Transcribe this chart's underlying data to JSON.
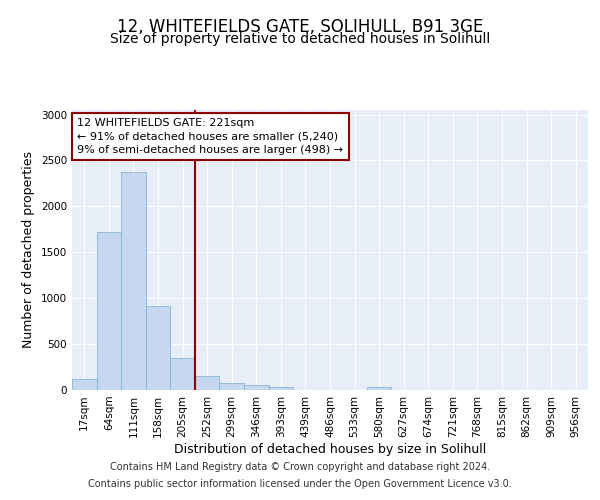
{
  "title_line1": "12, WHITEFIELDS GATE, SOLIHULL, B91 3GE",
  "title_line2": "Size of property relative to detached houses in Solihull",
  "xlabel": "Distribution of detached houses by size in Solihull",
  "ylabel": "Number of detached properties",
  "bin_labels": [
    "17sqm",
    "64sqm",
    "111sqm",
    "158sqm",
    "205sqm",
    "252sqm",
    "299sqm",
    "346sqm",
    "393sqm",
    "439sqm",
    "486sqm",
    "533sqm",
    "580sqm",
    "627sqm",
    "674sqm",
    "721sqm",
    "768sqm",
    "815sqm",
    "862sqm",
    "909sqm",
    "956sqm"
  ],
  "bar_values": [
    115,
    1720,
    2370,
    920,
    350,
    155,
    80,
    55,
    30,
    0,
    0,
    0,
    35,
    0,
    0,
    0,
    0,
    0,
    0,
    0,
    0
  ],
  "bar_color": "#c5d8ef",
  "bar_edge_color": "#7aaecd",
  "background_color": "#e8eef8",
  "grid_color": "#ffffff",
  "vline_x": 4.5,
  "vline_color": "#8b0000",
  "annotation_line1": "12 WHITEFIELDS GATE: 221sqm",
  "annotation_line2": "← 91% of detached houses are smaller (5,240)",
  "annotation_line3": "9% of semi-detached houses are larger (498) →",
  "annotation_box_color": "#8b0000",
  "ylim": [
    0,
    3050
  ],
  "yticks": [
    0,
    500,
    1000,
    1500,
    2000,
    2500,
    3000
  ],
  "footer_line1": "Contains HM Land Registry data © Crown copyright and database right 2024.",
  "footer_line2": "Contains public sector information licensed under the Open Government Licence v3.0.",
  "title_fontsize": 12,
  "subtitle_fontsize": 10,
  "axis_label_fontsize": 9,
  "tick_fontsize": 7.5,
  "footer_fontsize": 7,
  "annotation_fontsize": 8
}
